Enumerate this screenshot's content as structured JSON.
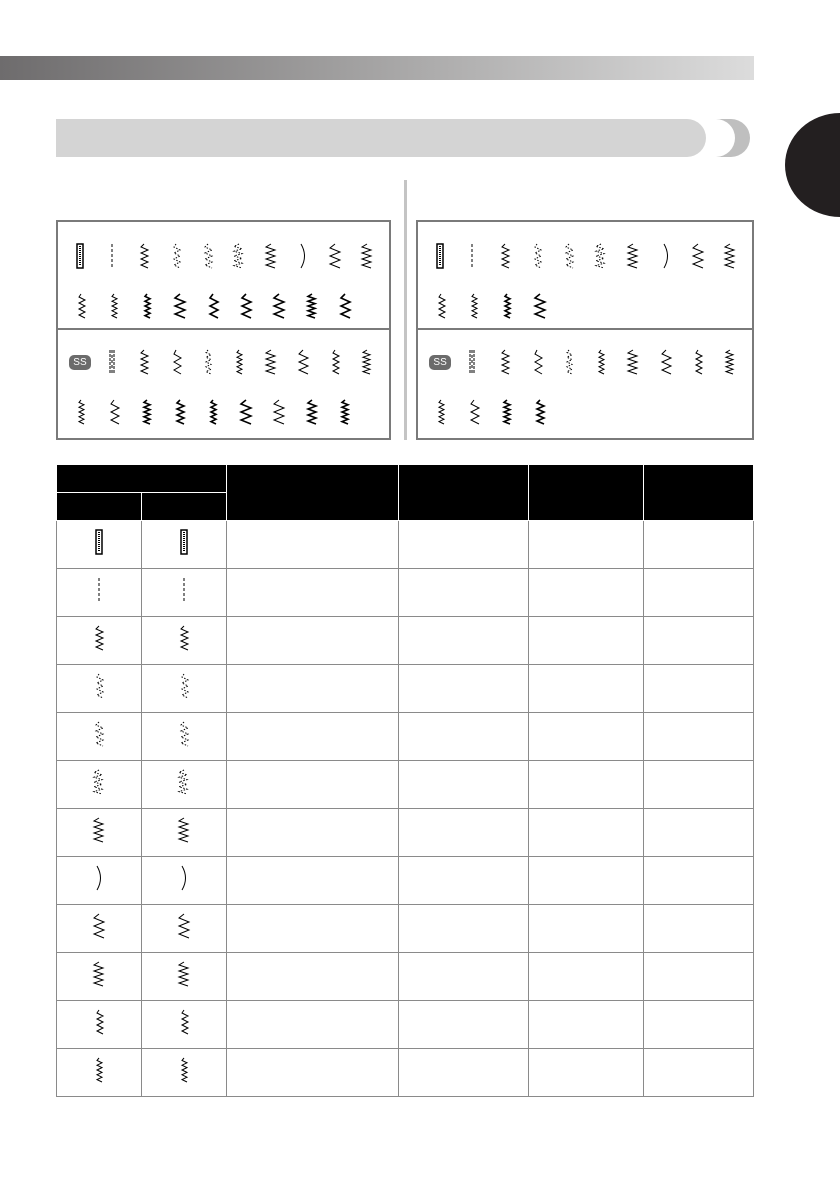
{
  "colors": {
    "header_gradient_start": "#6e6c6d",
    "header_gradient_end": "#dcdcdc",
    "title_bar": "#d4d4d4",
    "tab": "#231f20",
    "table_header": "#000000"
  },
  "panel_left": {
    "row1": [
      "buttonhole-box",
      "straight-dashed",
      "zigzag",
      "zigzag-dotted-left",
      "zigzag-dotted-right",
      "zigzag-dotted",
      "wave-zigzag",
      "curve",
      "serpentine",
      "stretch-zigzag"
    ],
    "row2": [
      "blind-hem",
      "blind-hem-elastic",
      "satin-diamond",
      "satin-arrow",
      "satin-step",
      "satin-wave",
      "satin-s",
      "satin-block",
      "satin-feather"
    ],
    "badge": "SS",
    "row3": [
      "triple-straight",
      "stacked-chevron",
      "double-triangle",
      "double-triangle-dashed",
      "chevron",
      "shell",
      "s-zigzag",
      "cross-stitch",
      "feather"
    ],
    "row4": [
      "box-triangle",
      "chevron-stack",
      "zigzag-bold",
      "zigzag-bold-2",
      "zigzag-bold-3",
      "zigzag-bold-4",
      "cross-small",
      "zigzag-bold-5",
      "zigzag-bold-6"
    ]
  },
  "panel_right": {
    "row1": [
      "buttonhole-box",
      "straight-dashed",
      "zigzag",
      "zigzag-dotted-left",
      "zigzag-dotted-right",
      "zigzag-dotted",
      "wave-zigzag",
      "curve",
      "serpentine",
      "stretch-zigzag"
    ],
    "row2": [
      "blind-hem",
      "blind-hem-elastic",
      "satin-diamond",
      "satin-arrow"
    ],
    "badge": "SS",
    "row3": [
      "triple-straight",
      "stacked-chevron",
      "double-triangle",
      "double-triangle-dashed",
      "chevron",
      "shell",
      "s-zigzag",
      "cross-stitch",
      "feather"
    ],
    "row4": [
      "box-triangle",
      "chevron-stack",
      "zigzag-bold",
      "zigzag-bold-2"
    ]
  },
  "table": {
    "rows": [
      "buttonhole-box",
      "straight-dashed",
      "zigzag",
      "zigzag-dotted-left",
      "zigzag-dotted-right",
      "zigzag-dotted",
      "wave-zigzag",
      "curve",
      "serpentine",
      "stretch-zigzag",
      "blind-hem",
      "blind-hem-elastic"
    ]
  }
}
